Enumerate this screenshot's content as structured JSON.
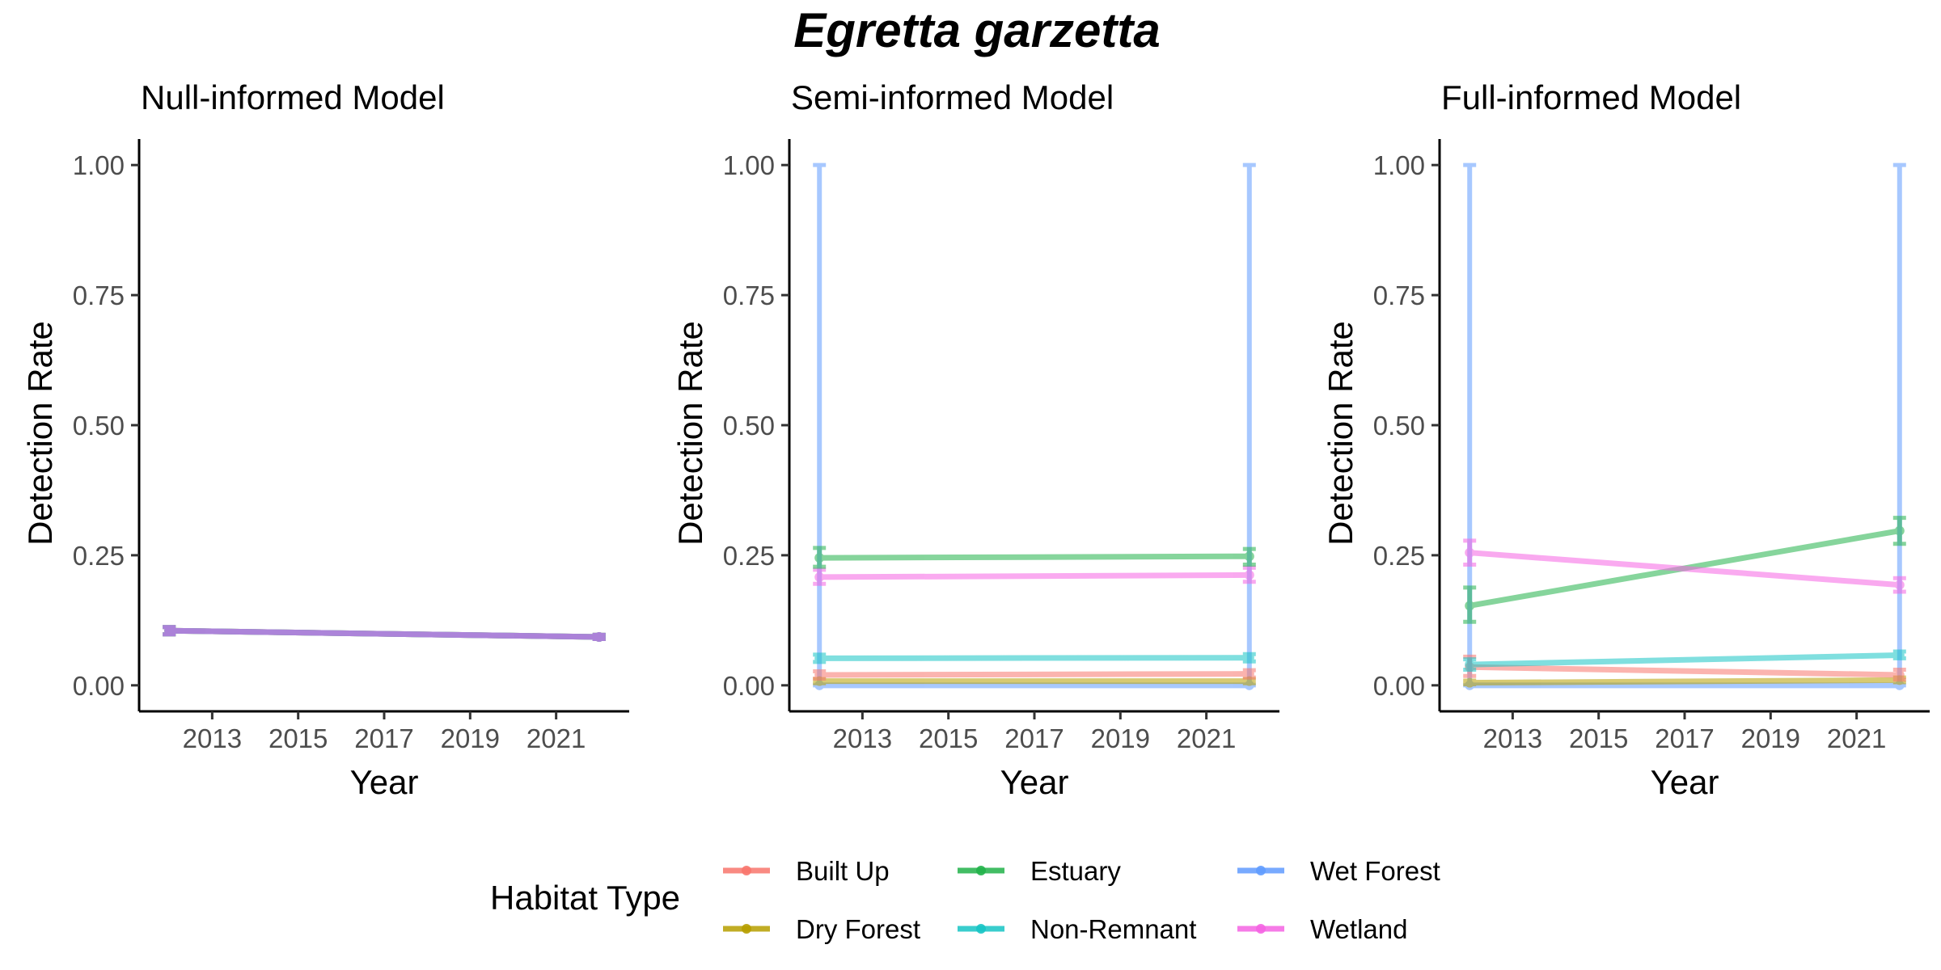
{
  "figure": {
    "title": "Egretta garzetta"
  },
  "legend": {
    "title": "Habitat Type",
    "items": [
      {
        "label": "Built Up",
        "color": "#F8766D"
      },
      {
        "label": "Estuary",
        "color": "#22B24A"
      },
      {
        "label": "Wet Forest",
        "color": "#619CFF"
      },
      {
        "label": "Dry Forest",
        "color": "#B79F00"
      },
      {
        "label": "Non-Remnant",
        "color": "#17C5C5"
      },
      {
        "label": "Wetland",
        "color": "#F564E3"
      }
    ]
  },
  "chart_data": [
    {
      "type": "line",
      "title": "Null-informed Model",
      "xlabel": "Year",
      "ylabel": "Detection Rate",
      "xlim": [
        2011.3,
        2022.7
      ],
      "ylim": [
        -0.05,
        1.05
      ],
      "x_ticks": [
        2013,
        2015,
        2017,
        2019,
        2021
      ],
      "x_tick_labels": [
        "2013",
        "2015",
        "2017",
        "2019",
        "2021"
      ],
      "y_ticks": [
        0,
        0.25,
        0.5,
        0.75,
        1
      ],
      "y_tick_labels": [
        "0.00",
        "0.25",
        "0.50",
        "0.75",
        "1.00"
      ],
      "grid": false,
      "series": [
        {
          "name": "Built Up",
          "color": "#F8766D",
          "x": [
            2012,
            2022
          ],
          "y": [
            0.105,
            0.093
          ],
          "lower": [
            0.098,
            0.089
          ],
          "upper": [
            0.112,
            0.097
          ]
        },
        {
          "name": "Dry Forest",
          "color": "#B79F00",
          "x": [
            2012,
            2022
          ],
          "y": [
            0.105,
            0.093
          ],
          "lower": [
            0.098,
            0.089
          ],
          "upper": [
            0.112,
            0.097
          ]
        },
        {
          "name": "Estuary",
          "color": "#22B24A",
          "x": [
            2012,
            2022
          ],
          "y": [
            0.105,
            0.093
          ],
          "lower": [
            0.098,
            0.089
          ],
          "upper": [
            0.112,
            0.097
          ]
        },
        {
          "name": "Non-Remnant",
          "color": "#17C5C5",
          "x": [
            2012,
            2022
          ],
          "y": [
            0.105,
            0.093
          ],
          "lower": [
            0.098,
            0.089
          ],
          "upper": [
            0.112,
            0.097
          ]
        },
        {
          "name": "Wet Forest",
          "color": "#619CFF",
          "x": [
            2012,
            2022
          ],
          "y": [
            0.105,
            0.093
          ],
          "lower": [
            0.098,
            0.089
          ],
          "upper": [
            0.112,
            0.097
          ]
        },
        {
          "name": "Wetland",
          "color": "#F564E3",
          "x": [
            2012,
            2022
          ],
          "y": [
            0.105,
            0.093
          ],
          "lower": [
            0.098,
            0.089
          ],
          "upper": [
            0.112,
            0.097
          ]
        }
      ]
    },
    {
      "type": "line",
      "title": "Semi-informed Model",
      "xlabel": "Year",
      "ylabel": "Detection Rate",
      "xlim": [
        2011.3,
        2022.7
      ],
      "ylim": [
        -0.05,
        1.05
      ],
      "x_ticks": [
        2013,
        2015,
        2017,
        2019,
        2021
      ],
      "x_tick_labels": [
        "2013",
        "2015",
        "2017",
        "2019",
        "2021"
      ],
      "y_ticks": [
        0,
        0.25,
        0.5,
        0.75,
        1
      ],
      "y_tick_labels": [
        "0.00",
        "0.25",
        "0.50",
        "0.75",
        "1.00"
      ],
      "grid": false,
      "series": [
        {
          "name": "Wet Forest",
          "color": "#619CFF",
          "x": [
            2012,
            2022
          ],
          "y": [
            0.0,
            0.0
          ],
          "lower": [
            0.0,
            0.0
          ],
          "upper": [
            1.0,
            1.0
          ]
        },
        {
          "name": "Dry Forest",
          "color": "#B79F00",
          "x": [
            2012,
            2022
          ],
          "y": [
            0.008,
            0.008
          ],
          "lower": [
            0.004,
            0.004
          ],
          "upper": [
            0.012,
            0.012
          ]
        },
        {
          "name": "Built Up",
          "color": "#F8766D",
          "x": [
            2012,
            2022
          ],
          "y": [
            0.02,
            0.022
          ],
          "lower": [
            0.013,
            0.015
          ],
          "upper": [
            0.027,
            0.029
          ]
        },
        {
          "name": "Non-Remnant",
          "color": "#17C5C5",
          "x": [
            2012,
            2022
          ],
          "y": [
            0.052,
            0.053
          ],
          "lower": [
            0.045,
            0.046
          ],
          "upper": [
            0.059,
            0.06
          ]
        },
        {
          "name": "Wetland",
          "color": "#F564E3",
          "x": [
            2012,
            2022
          ],
          "y": [
            0.208,
            0.212
          ],
          "lower": [
            0.195,
            0.199
          ],
          "upper": [
            0.222,
            0.226
          ]
        },
        {
          "name": "Estuary",
          "color": "#22B24A",
          "x": [
            2012,
            2022
          ],
          "y": [
            0.245,
            0.248
          ],
          "lower": [
            0.228,
            0.232
          ],
          "upper": [
            0.264,
            0.262
          ]
        }
      ]
    },
    {
      "type": "line",
      "title": "Full-informed Model",
      "xlabel": "Year",
      "ylabel": "Detection Rate",
      "xlim": [
        2011.3,
        2022.7
      ],
      "ylim": [
        -0.05,
        1.05
      ],
      "x_ticks": [
        2013,
        2015,
        2017,
        2019,
        2021
      ],
      "x_tick_labels": [
        "2013",
        "2015",
        "2017",
        "2019",
        "2021"
      ],
      "y_ticks": [
        0,
        0.25,
        0.5,
        0.75,
        1
      ],
      "y_tick_labels": [
        "0.00",
        "0.25",
        "0.50",
        "0.75",
        "1.00"
      ],
      "grid": false,
      "series": [
        {
          "name": "Wet Forest",
          "color": "#619CFF",
          "x": [
            2012,
            2022
          ],
          "y": [
            0.0,
            0.0
          ],
          "lower": [
            0.0,
            0.0
          ],
          "upper": [
            1.0,
            1.0
          ]
        },
        {
          "name": "Dry Forest",
          "color": "#B79F00",
          "x": [
            2012,
            2022
          ],
          "y": [
            0.005,
            0.01
          ],
          "lower": [
            0.002,
            0.006
          ],
          "upper": [
            0.009,
            0.015
          ]
        },
        {
          "name": "Built Up",
          "color": "#F8766D",
          "x": [
            2012,
            2022
          ],
          "y": [
            0.035,
            0.02
          ],
          "lower": [
            0.018,
            0.011
          ],
          "upper": [
            0.055,
            0.03
          ]
        },
        {
          "name": "Non-Remnant",
          "color": "#17C5C5",
          "x": [
            2012,
            2022
          ],
          "y": [
            0.04,
            0.058
          ],
          "lower": [
            0.03,
            0.052
          ],
          "upper": [
            0.05,
            0.065
          ]
        },
        {
          "name": "Estuary",
          "color": "#22B24A",
          "x": [
            2012,
            2022
          ],
          "y": [
            0.153,
            0.297
          ],
          "lower": [
            0.122,
            0.272
          ],
          "upper": [
            0.188,
            0.322
          ]
        },
        {
          "name": "Wetland",
          "color": "#F564E3",
          "x": [
            2012,
            2022
          ],
          "y": [
            0.255,
            0.193
          ],
          "lower": [
            0.232,
            0.18
          ],
          "upper": [
            0.278,
            0.206
          ]
        }
      ]
    }
  ]
}
